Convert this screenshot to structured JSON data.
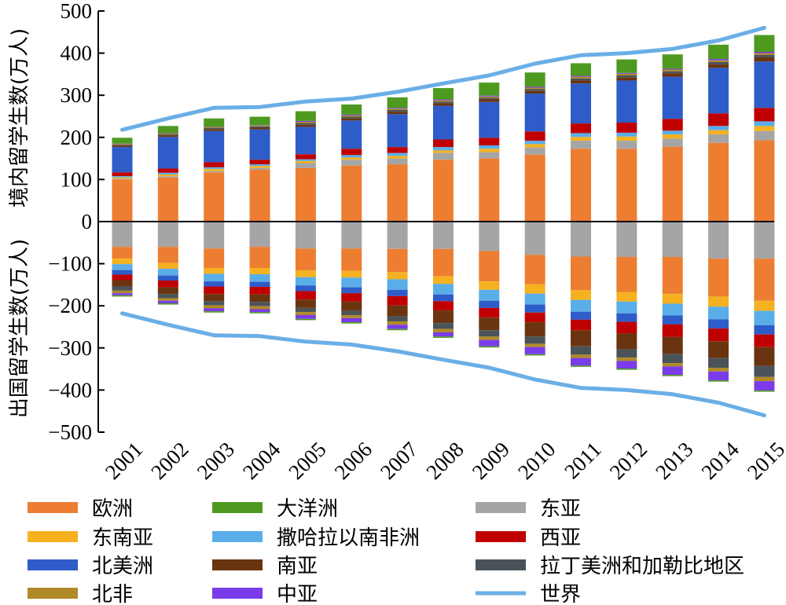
{
  "chart_data": {
    "type": "bar",
    "stacked": true,
    "categories": [
      "2001",
      "2002",
      "2003",
      "2004",
      "2005",
      "2006",
      "2007",
      "2008",
      "2009",
      "2010",
      "2011",
      "2012",
      "2013",
      "2014",
      "2015"
    ],
    "yaxis": {
      "ylim": [
        -500,
        500
      ],
      "ticks": [
        -500,
        -400,
        -300,
        -200,
        -100,
        0,
        100,
        200,
        300,
        400,
        500
      ],
      "tick_labels": [
        "−500",
        "−400",
        "−300",
        "−200",
        "−100",
        "0",
        "100",
        "200",
        "300",
        "400",
        "500"
      ],
      "upper_label": "境内留学生数(万人)",
      "lower_label": "出国留学生数(万人)"
    },
    "legend": {
      "placement": "bottom",
      "entries": [
        {
          "name": "欧洲",
          "color": "#ED7D31"
        },
        {
          "name": "大洋洲",
          "color": "#4E9A20"
        },
        {
          "name": "东亚",
          "color": "#A5A5A5"
        },
        {
          "name": "东南亚",
          "color": "#F5B120"
        },
        {
          "name": "撒哈拉以南非洲",
          "color": "#5AAEE8"
        },
        {
          "name": "西亚",
          "color": "#C00000"
        },
        {
          "name": "北美洲",
          "color": "#2E5CC8"
        },
        {
          "name": "南亚",
          "color": "#6B3410"
        },
        {
          "name": "拉丁美洲和加勒比地区",
          "color": "#4A5458"
        },
        {
          "name": "北非",
          "color": "#B08A28"
        },
        {
          "name": "中亚",
          "color": "#7A3CE8"
        },
        {
          "name": "世界",
          "color": "#6AAEE6"
        }
      ]
    },
    "inbound_series": [
      {
        "name": "欧洲",
        "values": [
          100,
          105,
          117,
          123,
          127,
          133,
          136,
          147,
          150,
          159,
          173,
          173,
          178,
          187,
          193
        ]
      },
      {
        "name": "东亚",
        "values": [
          2,
          3,
          3,
          4,
          12,
          14,
          14,
          16,
          15,
          17,
          19,
          19,
          19,
          20,
          22
        ]
      },
      {
        "name": "东南亚",
        "values": [
          3,
          4,
          5,
          5,
          5,
          5,
          6,
          6,
          8,
          8,
          9,
          10,
          10,
          10,
          12
        ]
      },
      {
        "name": "撒哈拉以南非洲",
        "values": [
          3,
          4,
          4,
          4,
          4,
          6,
          7,
          8,
          8,
          8,
          9,
          9,
          9,
          10,
          11
        ]
      },
      {
        "name": "西亚",
        "values": [
          9,
          10,
          12,
          11,
          12,
          15,
          14,
          18,
          18,
          22,
          23,
          24,
          28,
          30,
          32
        ]
      },
      {
        "name": "北美洲",
        "values": [
          60,
          75,
          74,
          72,
          65,
          67,
          78,
          80,
          85,
          90,
          95,
          100,
          100,
          108,
          110
        ]
      },
      {
        "name": "南亚",
        "values": [
          3,
          4,
          4,
          4,
          5,
          5,
          6,
          6,
          6,
          6,
          7,
          7,
          8,
          8,
          10
        ]
      },
      {
        "name": "拉丁美洲和加勒比地区",
        "values": [
          2,
          2,
          3,
          3,
          4,
          4,
          4,
          4,
          4,
          5,
          5,
          5,
          5,
          6,
          6
        ]
      },
      {
        "name": "北非",
        "values": [
          2,
          2,
          2,
          2,
          3,
          3,
          3,
          3,
          3,
          3,
          4,
          4,
          4,
          4,
          4
        ]
      },
      {
        "name": "中亚",
        "values": [
          1,
          1,
          1,
          1,
          2,
          2,
          2,
          2,
          2,
          2,
          2,
          2,
          2,
          3,
          3
        ]
      },
      {
        "name": "大洋洲",
        "values": [
          14,
          17,
          20,
          20,
          23,
          24,
          25,
          27,
          31,
          34,
          30,
          32,
          34,
          34,
          40
        ]
      }
    ],
    "outbound_series": [
      {
        "name": "东亚",
        "values": [
          -60,
          -60,
          -64,
          -60,
          -64,
          -64,
          -65,
          -65,
          -70,
          -79,
          -83,
          -84,
          -84,
          -88,
          -88
        ]
      },
      {
        "name": "欧洲",
        "values": [
          -28,
          -38,
          -46,
          -50,
          -52,
          -53,
          -55,
          -65,
          -72,
          -70,
          -80,
          -83,
          -88,
          -90,
          -100
        ]
      },
      {
        "name": "东南亚",
        "values": [
          -13,
          -14,
          -14,
          -15,
          -16,
          -16,
          -17,
          -18,
          -20,
          -22,
          -23,
          -23,
          -23,
          -24,
          -24
        ]
      },
      {
        "name": "撒哈拉以南非洲",
        "values": [
          -14,
          -16,
          -18,
          -18,
          -20,
          -23,
          -25,
          -25,
          -26,
          -26,
          -28,
          -28,
          -28,
          -30,
          -34
        ]
      },
      {
        "name": "北美洲",
        "values": [
          -11,
          -12,
          -12,
          -12,
          -13,
          -14,
          -15,
          -16,
          -17,
          -19,
          -19,
          -20,
          -21,
          -22,
          -22
        ]
      },
      {
        "name": "西亚",
        "values": [
          -13,
          -16,
          -18,
          -18,
          -20,
          -20,
          -22,
          -22,
          -23,
          -23,
          -25,
          -27,
          -30,
          -30,
          -30
        ]
      },
      {
        "name": "南亚",
        "values": [
          -15,
          -16,
          -17,
          -18,
          -20,
          -22,
          -26,
          -30,
          -30,
          -34,
          -38,
          -38,
          -40,
          -40,
          -45
        ]
      },
      {
        "name": "拉丁美洲和加勒比地区",
        "values": [
          -10,
          -10,
          -10,
          -10,
          -10,
          -10,
          -12,
          -14,
          -15,
          -17,
          -20,
          -20,
          -22,
          -23,
          -26
        ]
      },
      {
        "name": "北非",
        "values": [
          -6,
          -6,
          -7,
          -7,
          -7,
          -7,
          -8,
          -8,
          -8,
          -8,
          -8,
          -8,
          -8,
          -9,
          -10
        ]
      },
      {
        "name": "中亚",
        "values": [
          -5,
          -6,
          -7,
          -7,
          -9,
          -10,
          -10,
          -10,
          -15,
          -17,
          -18,
          -18,
          -20,
          -21,
          -22
        ]
      },
      {
        "name": "大洋洲",
        "values": [
          -3,
          -3,
          -3,
          -3,
          -3,
          -3,
          -3,
          -3,
          -3,
          -3,
          -3,
          -3,
          -3,
          -3,
          -3
        ]
      }
    ],
    "world_series": {
      "name": "世界",
      "values": [
        218,
        245,
        270,
        272,
        285,
        292,
        308,
        328,
        347,
        375,
        395,
        400,
        410,
        430,
        460
      ]
    }
  }
}
